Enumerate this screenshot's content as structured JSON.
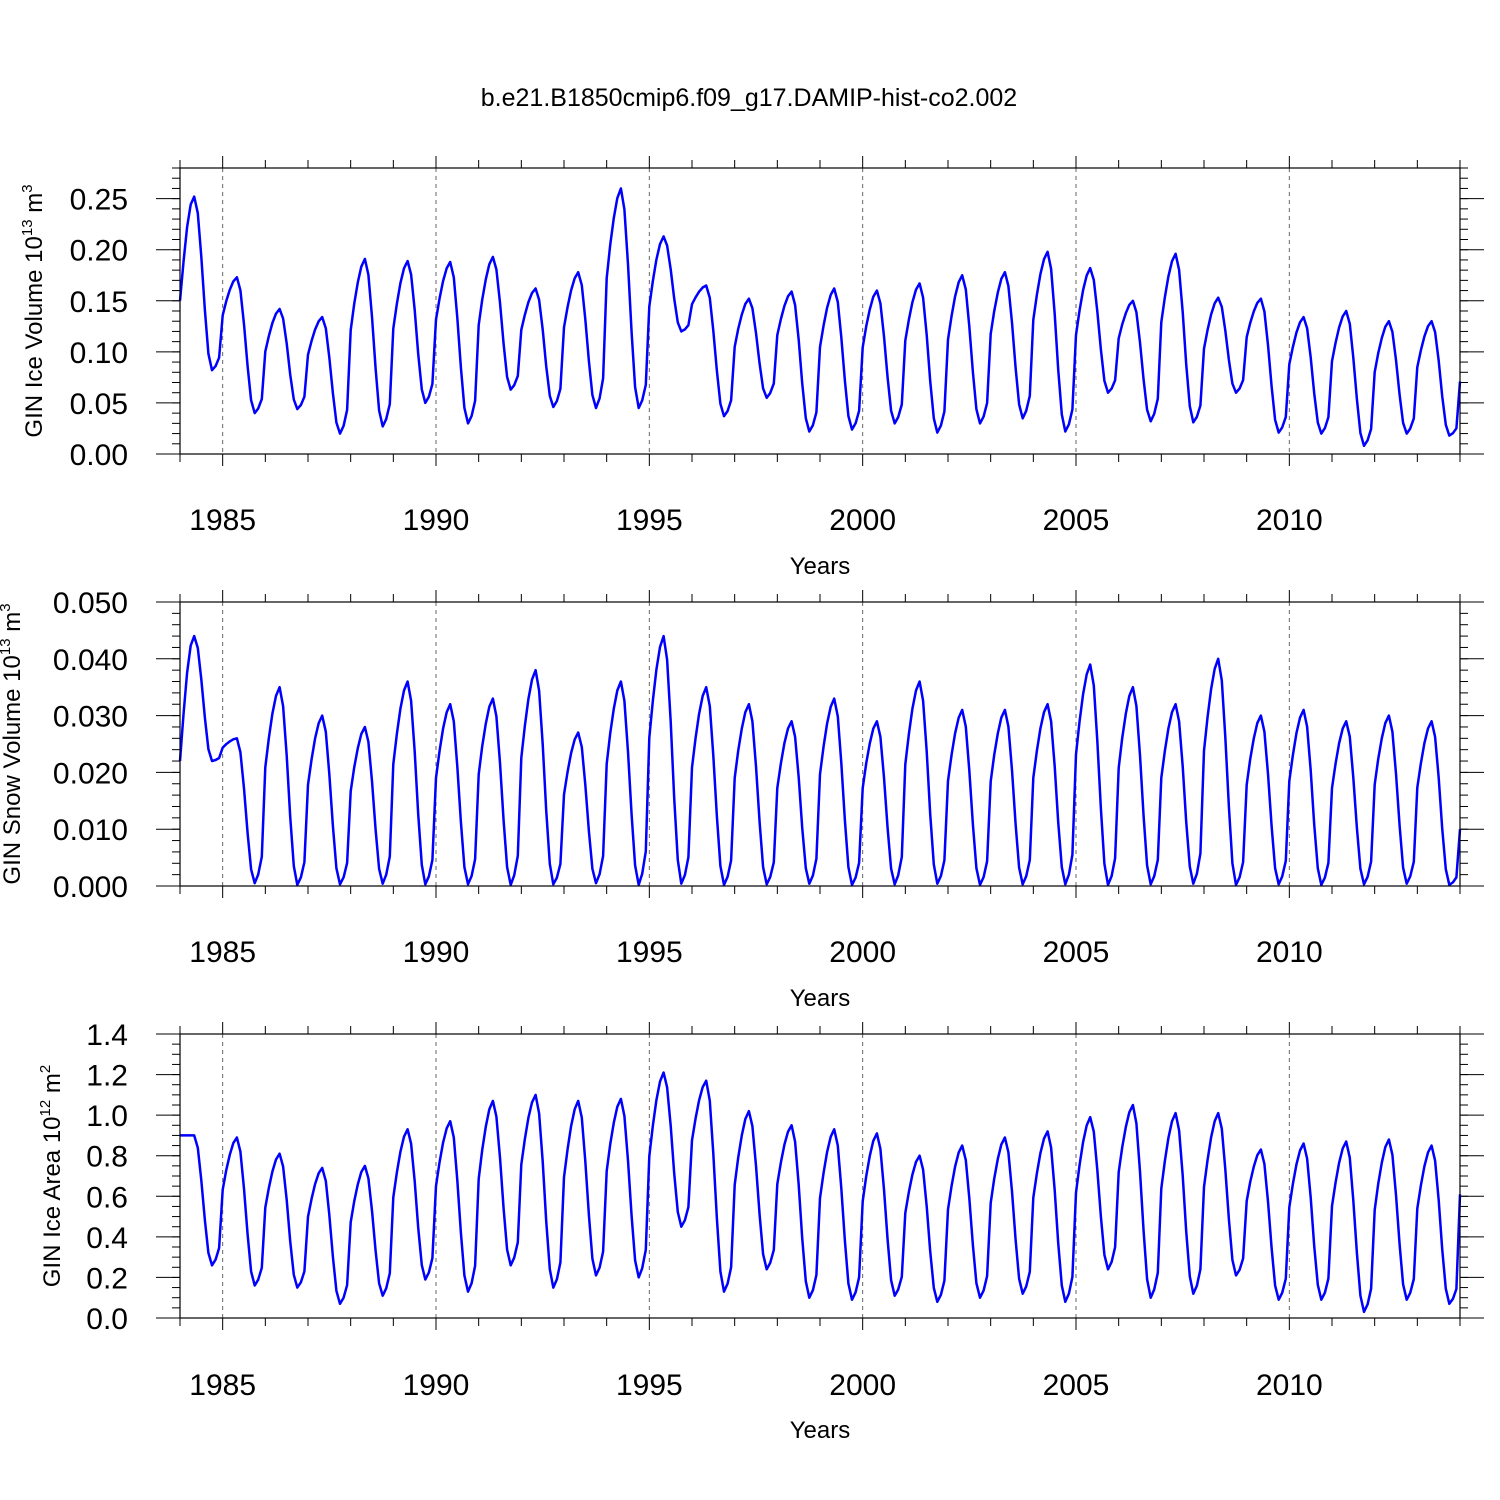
{
  "chart_data": {
    "type": "line",
    "title": "b.e21.B1850cmip6.f09_g17.DAMIP-hist-co2.002",
    "series_color": "#0000ff",
    "panels": [
      {
        "name": "ice-volume",
        "ylabel": "GIN Ice Volume 10",
        "ylabel_exp": "13",
        "ylabel_unit": " m",
        "ylabel_unit_exp": "3",
        "xlabel": "Years",
        "xlim": [
          1984,
          2014
        ],
        "ylim": [
          0,
          0.28
        ],
        "yticks": [
          0,
          0.05,
          0.1,
          0.15,
          0.2,
          0.25
        ],
        "ytick_labels": [
          "0.00",
          "0.05",
          "0.10",
          "0.15",
          "0.20",
          "0.25"
        ],
        "yminor": 0.01,
        "xticks": [
          1985,
          1990,
          1995,
          2000,
          2005,
          2010
        ],
        "xtick_labels": [
          "1985",
          "1990",
          "1995",
          "2000",
          "2005",
          "2010"
        ],
        "max": [
          0.252,
          0.173,
          0.142,
          0.134,
          0.191,
          0.189,
          0.188,
          0.193,
          0.162,
          0.178,
          0.26,
          0.213,
          0.165,
          0.152,
          0.159,
          0.162,
          0.16,
          0.167,
          0.175,
          0.178,
          0.198,
          0.182,
          0.15,
          0.196,
          0.153,
          0.152,
          0.134,
          0.14,
          0.13,
          0.13
        ],
        "min": [
          0.082,
          0.04,
          0.044,
          0.02,
          0.027,
          0.05,
          0.03,
          0.063,
          0.046,
          0.045,
          0.045,
          0.12,
          0.037,
          0.055,
          0.022,
          0.024,
          0.03,
          0.021,
          0.03,
          0.035,
          0.022,
          0.06,
          0.032,
          0.031,
          0.06,
          0.021,
          0.02,
          0.008,
          0.02,
          0.018
        ],
        "end_value": 0.071
      },
      {
        "name": "snow-volume",
        "ylabel": "GIN Snow Volume 10",
        "ylabel_exp": "13",
        "ylabel_unit": " m",
        "ylabel_unit_exp": "3",
        "xlabel": "Years",
        "xlim": [
          1984,
          2014
        ],
        "ylim": [
          0,
          0.05
        ],
        "yticks": [
          0,
          0.01,
          0.02,
          0.03,
          0.04,
          0.05
        ],
        "ytick_labels": [
          "0.000",
          "0.010",
          "0.020",
          "0.030",
          "0.040",
          "0.050"
        ],
        "yminor": 0.002,
        "xticks": [
          1985,
          1990,
          1995,
          2000,
          2005,
          2010
        ],
        "xtick_labels": [
          "1985",
          "1990",
          "1995",
          "2000",
          "2005",
          "2010"
        ],
        "max": [
          0.044,
          0.026,
          0.035,
          0.03,
          0.028,
          0.036,
          0.032,
          0.033,
          0.038,
          0.027,
          0.036,
          0.044,
          0.035,
          0.032,
          0.029,
          0.033,
          0.029,
          0.036,
          0.031,
          0.031,
          0.032,
          0.039,
          0.035,
          0.032,
          0.04,
          0.03,
          0.031,
          0.029,
          0.03,
          0.029
        ],
        "min": [
          0.022,
          0.0005,
          0.0002,
          0.0003,
          0.0004,
          0.0003,
          0.0003,
          0.0002,
          0.0003,
          0.0005,
          0.0002,
          0.0004,
          0.0002,
          0.0003,
          0.0004,
          0.0002,
          0.0003,
          0.0004,
          0.0002,
          0.0003,
          0.0003,
          0.0002,
          0.0003,
          0.0004,
          0.0002,
          0.0003,
          0.0002,
          0.0003,
          0.0004,
          0.0002
        ],
        "end_value": 0.01
      },
      {
        "name": "ice-area",
        "ylabel": "GIN Ice Area 10",
        "ylabel_exp": "12",
        "ylabel_unit": " m",
        "ylabel_unit_exp": "2",
        "xlabel": "Years",
        "xlim": [
          1984,
          2014
        ],
        "ylim": [
          0,
          1.4
        ],
        "yticks": [
          0,
          0.2,
          0.4,
          0.6,
          0.8,
          1.0,
          1.2,
          1.4
        ],
        "ytick_labels": [
          "0.0",
          "0.2",
          "0.4",
          "0.6",
          "0.8",
          "1.0",
          "1.2",
          "1.4"
        ],
        "yminor": 0.05,
        "xticks": [
          1985,
          1990,
          1995,
          2000,
          2005,
          2010
        ],
        "xtick_labels": [
          "1985",
          "1990",
          "1995",
          "2000",
          "2005",
          "2010"
        ],
        "max": [
          0.9,
          0.89,
          0.81,
          0.74,
          0.75,
          0.93,
          0.97,
          1.07,
          1.1,
          1.07,
          1.08,
          1.21,
          1.17,
          1.02,
          0.95,
          0.93,
          0.91,
          0.8,
          0.85,
          0.89,
          0.92,
          0.99,
          1.05,
          1.01,
          1.01,
          0.83,
          0.86,
          0.87,
          0.88,
          0.85
        ],
        "min": [
          0.26,
          0.16,
          0.15,
          0.07,
          0.11,
          0.19,
          0.13,
          0.26,
          0.15,
          0.21,
          0.2,
          0.45,
          0.13,
          0.24,
          0.1,
          0.09,
          0.11,
          0.08,
          0.1,
          0.12,
          0.08,
          0.24,
          0.1,
          0.12,
          0.21,
          0.09,
          0.09,
          0.03,
          0.09,
          0.07
        ],
        "end_value": 0.61
      }
    ]
  }
}
